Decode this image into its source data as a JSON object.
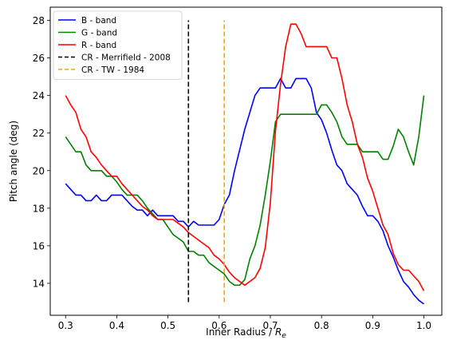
{
  "chart_data": {
    "type": "line",
    "title": "",
    "xlabel": "Inner Radius / ",
    "xlabel_math": "R",
    "xlabel_sub": "e",
    "ylabel": "Pitch angle (deg)",
    "xlim": [
      0.27,
      1.035
    ],
    "ylim": [
      12.3,
      28.7
    ],
    "xticks": [
      0.3,
      0.4,
      0.5,
      0.6,
      0.7,
      0.8,
      0.9,
      1.0
    ],
    "xtick_labels": [
      "0.3",
      "0.4",
      "0.5",
      "0.6",
      "0.7",
      "0.8",
      "0.9",
      "1.0"
    ],
    "yticks": [
      14,
      16,
      18,
      20,
      22,
      24,
      26,
      28
    ],
    "ytick_labels": [
      "14",
      "16",
      "18",
      "20",
      "22",
      "24",
      "26",
      "28"
    ],
    "grid": false,
    "legend_position": "upper-left",
    "series": [
      {
        "name": "B - band",
        "color": "#0000ff",
        "style": "solid",
        "x": [
          0.3,
          0.31,
          0.32,
          0.33,
          0.34,
          0.35,
          0.36,
          0.37,
          0.38,
          0.39,
          0.4,
          0.41,
          0.42,
          0.43,
          0.44,
          0.45,
          0.46,
          0.47,
          0.48,
          0.49,
          0.5,
          0.51,
          0.52,
          0.53,
          0.54,
          0.55,
          0.56,
          0.57,
          0.58,
          0.59,
          0.6,
          0.61,
          0.62,
          0.63,
          0.64,
          0.65,
          0.66,
          0.67,
          0.68,
          0.69,
          0.7,
          0.71,
          0.72,
          0.73,
          0.74,
          0.75,
          0.76,
          0.77,
          0.78,
          0.79,
          0.8,
          0.81,
          0.82,
          0.83,
          0.84,
          0.85,
          0.86,
          0.87,
          0.88,
          0.89,
          0.9,
          0.91,
          0.92,
          0.93,
          0.94,
          0.95,
          0.96,
          0.97,
          0.98,
          0.99,
          1.0
        ],
        "y": [
          19.3,
          19.0,
          18.7,
          18.7,
          18.4,
          18.4,
          18.7,
          18.4,
          18.4,
          18.7,
          18.7,
          18.7,
          18.4,
          18.1,
          17.9,
          17.9,
          17.6,
          17.9,
          17.6,
          17.6,
          17.6,
          17.6,
          17.3,
          17.3,
          17.0,
          17.3,
          17.1,
          17.1,
          17.1,
          17.1,
          17.4,
          18.2,
          18.7,
          20.0,
          21.1,
          22.2,
          23.1,
          24.0,
          24.4,
          24.4,
          24.4,
          24.4,
          24.9,
          24.4,
          24.4,
          24.9,
          24.9,
          24.9,
          24.4,
          23.1,
          22.7,
          22.0,
          21.1,
          20.3,
          20.0,
          19.3,
          19.0,
          18.7,
          18.1,
          17.6,
          17.6,
          17.3,
          16.8,
          16.0,
          15.4,
          14.7,
          14.1,
          13.8,
          13.4,
          13.1,
          12.9
        ]
      },
      {
        "name": "G - band",
        "color": "#008000",
        "style": "solid",
        "x": [
          0.3,
          0.31,
          0.32,
          0.33,
          0.34,
          0.35,
          0.36,
          0.37,
          0.38,
          0.39,
          0.4,
          0.41,
          0.42,
          0.43,
          0.44,
          0.45,
          0.46,
          0.47,
          0.48,
          0.49,
          0.5,
          0.51,
          0.52,
          0.53,
          0.54,
          0.55,
          0.56,
          0.57,
          0.58,
          0.59,
          0.6,
          0.61,
          0.62,
          0.63,
          0.64,
          0.65,
          0.66,
          0.67,
          0.68,
          0.69,
          0.7,
          0.71,
          0.72,
          0.73,
          0.74,
          0.75,
          0.76,
          0.77,
          0.78,
          0.79,
          0.8,
          0.81,
          0.82,
          0.83,
          0.84,
          0.85,
          0.86,
          0.87,
          0.88,
          0.89,
          0.9,
          0.91,
          0.92,
          0.93,
          0.94,
          0.95,
          0.96,
          0.97,
          0.98,
          0.99,
          1.0
        ],
        "y": [
          21.8,
          21.4,
          21.0,
          21.0,
          20.3,
          20.0,
          20.0,
          20.0,
          19.7,
          19.7,
          19.4,
          19.0,
          18.7,
          18.7,
          18.7,
          18.4,
          18.0,
          17.7,
          17.4,
          17.4,
          17.0,
          16.6,
          16.4,
          16.2,
          15.7,
          15.7,
          15.5,
          15.5,
          15.1,
          14.9,
          14.7,
          14.5,
          14.1,
          13.9,
          13.9,
          14.2,
          15.3,
          16.0,
          17.1,
          18.7,
          20.5,
          22.6,
          23.0,
          23.0,
          23.0,
          23.0,
          23.0,
          23.0,
          23.0,
          23.0,
          23.5,
          23.5,
          23.1,
          22.6,
          21.8,
          21.4,
          21.4,
          21.4,
          21.0,
          21.0,
          21.0,
          21.0,
          20.6,
          20.6,
          21.3,
          22.2,
          21.8,
          21.0,
          20.3,
          21.8,
          24.0
        ]
      },
      {
        "name": "R - band",
        "color": "#ff0000",
        "style": "solid",
        "x": [
          0.3,
          0.31,
          0.32,
          0.33,
          0.34,
          0.35,
          0.36,
          0.37,
          0.38,
          0.39,
          0.4,
          0.41,
          0.42,
          0.43,
          0.44,
          0.45,
          0.46,
          0.47,
          0.48,
          0.49,
          0.5,
          0.51,
          0.52,
          0.53,
          0.54,
          0.55,
          0.56,
          0.57,
          0.58,
          0.59,
          0.6,
          0.61,
          0.62,
          0.63,
          0.64,
          0.65,
          0.66,
          0.67,
          0.68,
          0.69,
          0.7,
          0.71,
          0.72,
          0.73,
          0.74,
          0.75,
          0.76,
          0.77,
          0.78,
          0.79,
          0.8,
          0.81,
          0.82,
          0.83,
          0.84,
          0.85,
          0.86,
          0.87,
          0.88,
          0.89,
          0.9,
          0.91,
          0.92,
          0.93,
          0.94,
          0.95,
          0.96,
          0.97,
          0.98,
          0.99,
          1.0
        ],
        "y": [
          24.0,
          23.5,
          23.1,
          22.2,
          21.8,
          21.0,
          20.7,
          20.3,
          20.0,
          19.7,
          19.7,
          19.3,
          19.0,
          18.7,
          18.4,
          18.1,
          17.9,
          17.6,
          17.4,
          17.4,
          17.4,
          17.4,
          17.2,
          17.0,
          16.7,
          16.5,
          16.3,
          16.1,
          15.9,
          15.5,
          15.3,
          15.0,
          14.6,
          14.3,
          14.1,
          13.9,
          14.1,
          14.3,
          14.8,
          15.9,
          18.3,
          22.1,
          24.6,
          26.6,
          27.8,
          27.8,
          27.3,
          26.6,
          26.6,
          26.6,
          26.6,
          26.6,
          26.0,
          26.0,
          24.9,
          23.5,
          22.6,
          21.4,
          20.7,
          19.6,
          18.9,
          18.0,
          17.1,
          16.6,
          15.6,
          15.0,
          14.7,
          14.7,
          14.4,
          14.1,
          13.6
        ]
      },
      {
        "name": "CR - Merrifield - 2008",
        "color": "#000000",
        "style": "dashed",
        "x": [
          0.54,
          0.54
        ],
        "y": [
          13.0,
          28.0
        ]
      },
      {
        "name": "CR - TW - 1984",
        "color": "#ffa500",
        "style": "dashed",
        "x": [
          0.61,
          0.61
        ],
        "y": [
          13.0,
          28.0
        ]
      }
    ]
  }
}
